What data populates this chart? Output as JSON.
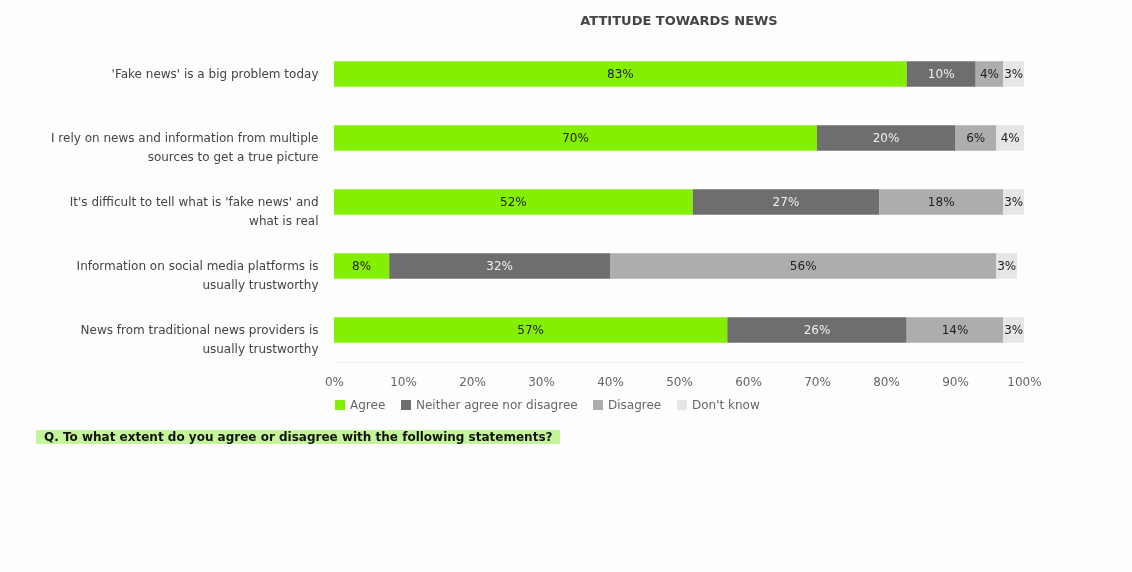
{
  "chart_data": {
    "type": "bar",
    "orientation": "horizontal",
    "stacked": true,
    "title": "ATTITUDE TOWARDS NEWS",
    "categories": [
      "'Fake news' is a big problem today",
      "I rely on news and information from multiple sources to get a true picture",
      "It's difficult to tell what is 'fake news' and what is real",
      "Information on social media platforms is usually trustworthy",
      "News from traditional news providers is usually trustworthy"
    ],
    "series": [
      {
        "name": "Agree",
        "color": "#84f000",
        "values": [
          83,
          70,
          52,
          8,
          57
        ],
        "value_labels": [
          "83%",
          "70%",
          "52%",
          "8%",
          "57%"
        ]
      },
      {
        "name": "Neither agree nor disagree",
        "color": "#6e6e6e",
        "values": [
          10,
          20,
          27,
          32,
          26
        ],
        "value_labels": [
          "10%",
          "20%",
          "27%",
          "32%",
          "26%"
        ]
      },
      {
        "name": "Disagree",
        "color": "#adadad",
        "values": [
          4,
          6,
          18,
          56,
          14
        ],
        "value_labels": [
          "4%",
          "6%",
          "18%",
          "56%",
          "14%"
        ]
      },
      {
        "name": "Don't know",
        "color": "#e6e6e6",
        "values": [
          3,
          4,
          3,
          3,
          3
        ],
        "value_labels": [
          "3%",
          "4%",
          "3%",
          "3%",
          "3%"
        ]
      }
    ],
    "xlim": [
      0,
      100
    ],
    "xticks": [
      {
        "value": 0,
        "label": "0%"
      },
      {
        "value": 10,
        "label": "10%"
      },
      {
        "value": 20,
        "label": "20%"
      },
      {
        "value": 30,
        "label": "30%"
      },
      {
        "value": 40,
        "label": "40%"
      },
      {
        "value": 50,
        "label": "50%"
      },
      {
        "value": 60,
        "label": "60%"
      },
      {
        "value": 70,
        "label": "70%"
      },
      {
        "value": 80,
        "label": "80%"
      },
      {
        "value": 90,
        "label": "90%"
      },
      {
        "value": 100,
        "label": "100%"
      }
    ],
    "grid": false,
    "legend": "bottom",
    "annotations": [
      "Q. To what extent do you agree or disagree with the following statements?"
    ]
  }
}
